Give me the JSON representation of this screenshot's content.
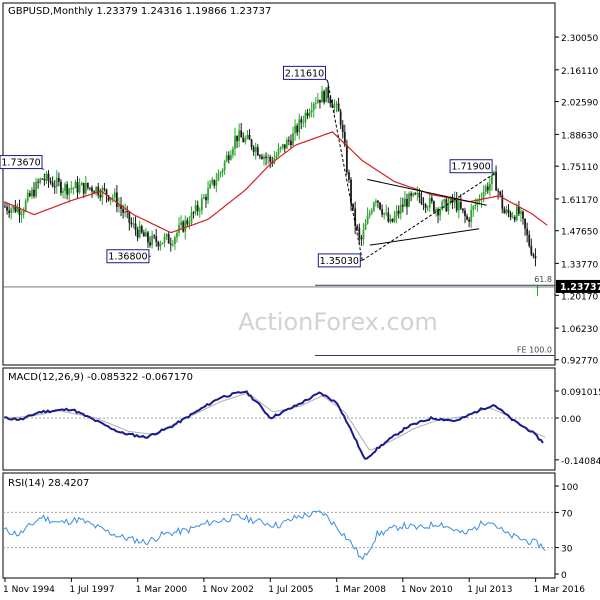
{
  "header": {
    "symbol_line": "GBPUSD,Monthly  1.23379 1.24316 1.19866 1.23737"
  },
  "watermark": "ActionForex.com",
  "colors": {
    "candle_up": "#2ea52e",
    "candle_down": "#1a1a1a",
    "moving_average": "#d42020",
    "macd_line": "#1a1a8c",
    "signal_line": "#b0b0b0",
    "rsi_line": "#3a8ee6",
    "annotation_box": "#1a1a8c",
    "price_box_bg": "#000000",
    "grid_dash": "#a0a0a0"
  },
  "chart_data": [
    {
      "type": "candlestick",
      "title": "GBPUSD,Monthly",
      "ohlc_last": {
        "open": 1.23379,
        "high": 1.24316,
        "low": 1.19866,
        "close": 1.23737
      },
      "y_ticks": [
        "2.30050",
        "2.16110",
        "2.02590",
        "1.88630",
        "1.75110",
        "1.61170",
        "1.47650",
        "1.33770",
        "1.20170",
        "1.06230",
        "0.92770"
      ],
      "y_tick_values": [
        2.3005,
        2.1611,
        2.0259,
        1.8863,
        1.7511,
        1.6117,
        1.4765,
        1.3377,
        1.2017,
        1.0623,
        0.9277
      ],
      "ylim": [
        0.918,
        2.373
      ],
      "x_ticks": [
        "1 Nov 1994",
        "1 Jul 1997",
        "1 Mar 2000",
        "1 Nov 2002",
        "1 Jul 2005",
        "1 Mar 2008",
        "1 Nov 2010",
        "1 Jul 2013",
        "1 Mar 2016"
      ],
      "x_tick_values": [
        1994.83,
        1997.5,
        2000.17,
        2002.83,
        2005.5,
        2008.17,
        2010.83,
        2013.5,
        2016.17
      ],
      "xlim": [
        1994.75,
        2016.95
      ],
      "current_price_label": "1.23737",
      "annotations": [
        {
          "label": "1.73670",
          "t": 1996.4,
          "value": 1.7367
        },
        {
          "label": "1.36800",
          "t": 2000.7,
          "value": 1.368
        },
        {
          "label": "2.11610",
          "t": 2007.8,
          "value": 2.1161
        },
        {
          "label": "1.35030",
          "t": 2009.2,
          "value": 1.3503
        },
        {
          "label": "1.71900",
          "t": 2014.5,
          "value": 1.719
        }
      ],
      "fibonacci_levels": [
        {
          "label": "61.8",
          "value": 1.2446
        },
        {
          "label": "FE 100.0",
          "value": 0.9455
        }
      ],
      "monthly_candles_count": 258,
      "moving_average_anchors": [
        {
          "t": 1994.8,
          "v": 1.6
        },
        {
          "t": 1996.0,
          "v": 1.545
        },
        {
          "t": 1997.5,
          "v": 1.605
        },
        {
          "t": 1998.7,
          "v": 1.645
        },
        {
          "t": 2000.0,
          "v": 1.545
        },
        {
          "t": 2001.5,
          "v": 1.468
        },
        {
          "t": 2003.0,
          "v": 1.525
        },
        {
          "t": 2004.5,
          "v": 1.65
        },
        {
          "t": 2005.5,
          "v": 1.76
        },
        {
          "t": 2006.5,
          "v": 1.84
        },
        {
          "t": 2008.0,
          "v": 1.897
        },
        {
          "t": 2009.2,
          "v": 1.775
        },
        {
          "t": 2010.5,
          "v": 1.685
        },
        {
          "t": 2012.0,
          "v": 1.63
        },
        {
          "t": 2013.5,
          "v": 1.6
        },
        {
          "t": 2014.7,
          "v": 1.625
        },
        {
          "t": 2016.0,
          "v": 1.55
        },
        {
          "t": 2016.7,
          "v": 1.495
        }
      ]
    },
    {
      "type": "line",
      "title": "MACD(12,26,9) -0.085322 -0.067170",
      "y_ticks": [
        "0.091015",
        "0.00",
        "-0.140843"
      ],
      "y_tick_values": [
        0.091015,
        0.0,
        -0.140843
      ],
      "ylim": [
        -0.165,
        0.118
      ],
      "series": [
        {
          "name": "macd",
          "anchors": [
            {
              "t": 1994.8,
              "v": 0.0
            },
            {
              "t": 1995.5,
              "v": -0.005
            },
            {
              "t": 1996.2,
              "v": 0.02
            },
            {
              "t": 1997.5,
              "v": 0.03
            },
            {
              "t": 1998.5,
              "v": -0.01
            },
            {
              "t": 1999.5,
              "v": -0.05
            },
            {
              "t": 2000.5,
              "v": -0.065
            },
            {
              "t": 2001.5,
              "v": -0.03
            },
            {
              "t": 2002.5,
              "v": 0.02
            },
            {
              "t": 2003.5,
              "v": 0.07
            },
            {
              "t": 2004.5,
              "v": 0.09
            },
            {
              "t": 2005.0,
              "v": 0.05
            },
            {
              "t": 2005.5,
              "v": 0.0
            },
            {
              "t": 2006.5,
              "v": 0.04
            },
            {
              "t": 2007.5,
              "v": 0.085
            },
            {
              "t": 2008.2,
              "v": 0.05
            },
            {
              "t": 2008.8,
              "v": -0.05
            },
            {
              "t": 2009.3,
              "v": -0.14
            },
            {
              "t": 2010.0,
              "v": -0.09
            },
            {
              "t": 2011.0,
              "v": -0.03
            },
            {
              "t": 2012.0,
              "v": 0.0
            },
            {
              "t": 2013.0,
              "v": -0.01
            },
            {
              "t": 2014.0,
              "v": 0.03
            },
            {
              "t": 2014.5,
              "v": 0.045
            },
            {
              "t": 2015.3,
              "v": -0.01
            },
            {
              "t": 2016.0,
              "v": -0.045
            },
            {
              "t": 2016.5,
              "v": -0.085
            }
          ]
        },
        {
          "name": "signal",
          "anchors": [
            {
              "t": 1994.8,
              "v": 0.0
            },
            {
              "t": 1995.8,
              "v": 0.005
            },
            {
              "t": 1997.0,
              "v": 0.025
            },
            {
              "t": 1998.5,
              "v": 0.0
            },
            {
              "t": 1999.8,
              "v": -0.045
            },
            {
              "t": 2000.8,
              "v": -0.055
            },
            {
              "t": 2002.0,
              "v": -0.005
            },
            {
              "t": 2003.5,
              "v": 0.055
            },
            {
              "t": 2004.6,
              "v": 0.085
            },
            {
              "t": 2005.6,
              "v": 0.02
            },
            {
              "t": 2006.7,
              "v": 0.04
            },
            {
              "t": 2007.6,
              "v": 0.075
            },
            {
              "t": 2008.5,
              "v": 0.02
            },
            {
              "t": 2009.5,
              "v": -0.11
            },
            {
              "t": 2010.3,
              "v": -0.08
            },
            {
              "t": 2011.3,
              "v": -0.035
            },
            {
              "t": 2012.3,
              "v": -0.005
            },
            {
              "t": 2013.3,
              "v": 0.005
            },
            {
              "t": 2014.3,
              "v": 0.035
            },
            {
              "t": 2015.0,
              "v": 0.01
            },
            {
              "t": 2015.8,
              "v": -0.035
            },
            {
              "t": 2016.6,
              "v": -0.067
            }
          ]
        }
      ],
      "zero_line": 0.0
    },
    {
      "type": "line",
      "title": "RSI(14) 28.4207",
      "y_ticks": [
        "100",
        "70",
        "30",
        "0"
      ],
      "y_tick_values": [
        100,
        70,
        30,
        0
      ],
      "ylim": [
        0,
        100
      ],
      "series": [
        {
          "name": "rsi",
          "anchors": [
            {
              "t": 1994.8,
              "v": 50
            },
            {
              "t": 1995.4,
              "v": 45
            },
            {
              "t": 1996.3,
              "v": 65
            },
            {
              "t": 1997.0,
              "v": 58
            },
            {
              "t": 1997.8,
              "v": 62
            },
            {
              "t": 1998.8,
              "v": 50
            },
            {
              "t": 1999.5,
              "v": 42
            },
            {
              "t": 2000.5,
              "v": 36
            },
            {
              "t": 2001.2,
              "v": 45
            },
            {
              "t": 2002.2,
              "v": 50
            },
            {
              "t": 2003.0,
              "v": 58
            },
            {
              "t": 2004.2,
              "v": 65
            },
            {
              "t": 2005.0,
              "v": 60
            },
            {
              "t": 2005.8,
              "v": 55
            },
            {
              "t": 2006.6,
              "v": 65
            },
            {
              "t": 2007.6,
              "v": 70
            },
            {
              "t": 2008.3,
              "v": 50
            },
            {
              "t": 2008.9,
              "v": 30
            },
            {
              "t": 2009.2,
              "v": 15
            },
            {
              "t": 2009.8,
              "v": 45
            },
            {
              "t": 2010.8,
              "v": 55
            },
            {
              "t": 2011.5,
              "v": 52
            },
            {
              "t": 2012.3,
              "v": 58
            },
            {
              "t": 2013.3,
              "v": 45
            },
            {
              "t": 2014.3,
              "v": 62
            },
            {
              "t": 2015.0,
              "v": 45
            },
            {
              "t": 2015.8,
              "v": 38
            },
            {
              "t": 2016.3,
              "v": 34
            },
            {
              "t": 2016.6,
              "v": 28
            }
          ]
        }
      ],
      "levels": [
        70,
        30
      ]
    }
  ]
}
